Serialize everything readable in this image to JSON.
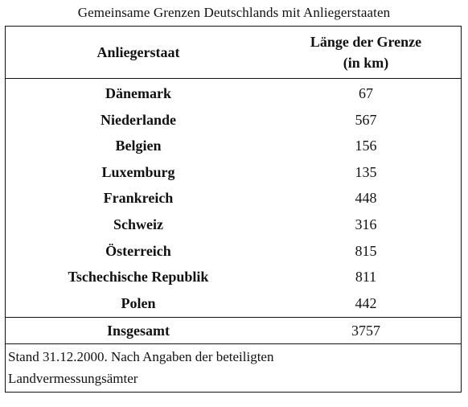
{
  "caption": "Gemeinsame Grenzen Deutschlands mit Anliegerstaaten",
  "header": {
    "col1": "Anliegerstaat",
    "col2_line1": "Länge der Grenze",
    "col2_line2": "(in km)"
  },
  "rows": [
    {
      "name": "Dänemark",
      "value": "67"
    },
    {
      "name": "Niederlande",
      "value": "567"
    },
    {
      "name": "Belgien",
      "value": "156"
    },
    {
      "name": "Luxemburg",
      "value": "135"
    },
    {
      "name": "Frankreich",
      "value": "448"
    },
    {
      "name": "Schweiz",
      "value": "316"
    },
    {
      "name": "Österreich",
      "value": "815"
    },
    {
      "name": "Tschechische Republik",
      "value": "811"
    },
    {
      "name": "Polen",
      "value": "442"
    }
  ],
  "total": {
    "name": "Insgesamt",
    "value": "3757"
  },
  "note": {
    "line1": "Stand 31.12.2000. Nach Angaben der beteiligten",
    "line2": "Landvermessungsämter"
  }
}
